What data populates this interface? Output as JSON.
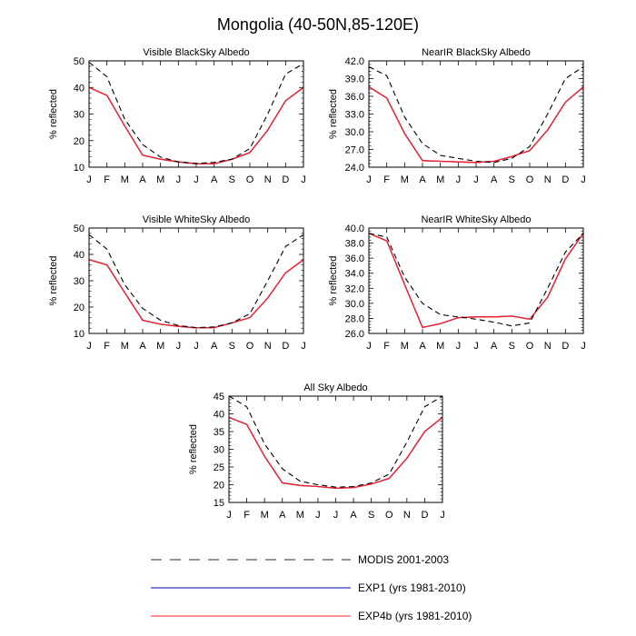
{
  "title": "Mongolia (40-50N,85-120E)",
  "colors": {
    "modis": "#000000",
    "exp1": "#0000b4",
    "exp4b": "#ff2020",
    "frame": "#000000"
  },
  "legend": {
    "entries": [
      {
        "label": "MODIS 2001-2003",
        "style": "dashed",
        "color": "#555555"
      },
      {
        "label": "EXP1 (yrs 1981-2010)",
        "style": "solid",
        "color": "#0000b4"
      },
      {
        "label": "EXP4b (yrs 1981-2010)",
        "style": "solid",
        "color": "#ff2020"
      }
    ]
  },
  "chart_data": [
    {
      "type": "line",
      "title": "Visible BlackSky Albedo",
      "ylabel": "% reflected",
      "xlabel": "",
      "categories": [
        "J",
        "F",
        "M",
        "A",
        "M",
        "J",
        "J",
        "A",
        "S",
        "O",
        "N",
        "D",
        "J"
      ],
      "ylim": [
        10,
        50
      ],
      "yticks": [
        "10",
        "20",
        "30",
        "40",
        "50"
      ],
      "series": [
        {
          "name": "MODIS 2001-2003",
          "values": [
            49.5,
            44,
            28,
            18.5,
            13.8,
            12,
            11.4,
            11.8,
            13,
            17,
            30,
            45,
            49
          ]
        },
        {
          "name": "EXP1 (yrs 1981-2010)",
          "values": [
            40,
            37,
            25.5,
            14.5,
            13,
            12,
            11.3,
            11.3,
            13,
            15.5,
            24,
            35,
            40
          ]
        },
        {
          "name": "EXP4b (yrs 1981-2010)",
          "values": [
            40,
            37,
            25.5,
            14.5,
            13,
            12,
            11.3,
            11.3,
            13,
            15.5,
            24,
            35,
            40
          ]
        }
      ]
    },
    {
      "type": "line",
      "title": "NearIR BlackSky Albedo",
      "ylabel": "% reflected",
      "xlabel": "",
      "categories": [
        "J",
        "F",
        "M",
        "A",
        "M",
        "J",
        "J",
        "A",
        "S",
        "O",
        "N",
        "D",
        "J"
      ],
      "ylim": [
        24,
        42
      ],
      "yticks": [
        "24.0",
        "27.0",
        "30.0",
        "33.0",
        "36.0",
        "39.0",
        "42.0"
      ],
      "series": [
        {
          "name": "MODIS 2001-2003",
          "values": [
            41,
            39.5,
            32.5,
            28,
            26,
            25.5,
            25,
            24.8,
            25.5,
            27.5,
            33,
            39,
            41
          ]
        },
        {
          "name": "EXP1 (yrs 1981-2010)",
          "values": [
            37.6,
            35.7,
            29.7,
            25.1,
            25,
            24.9,
            24.8,
            25,
            25.8,
            26.8,
            30.3,
            35,
            37.6
          ]
        },
        {
          "name": "EXP4b (yrs 1981-2010)",
          "values": [
            37.6,
            35.7,
            29.7,
            25.1,
            25,
            24.9,
            24.8,
            25,
            25.8,
            26.8,
            30.3,
            35,
            37.6
          ]
        }
      ]
    },
    {
      "type": "line",
      "title": "Visible WhiteSky Albedo",
      "ylabel": "% reflected",
      "xlabel": "",
      "categories": [
        "J",
        "F",
        "M",
        "A",
        "M",
        "J",
        "J",
        "A",
        "S",
        "O",
        "N",
        "D",
        "J"
      ],
      "ylim": [
        10,
        50
      ],
      "yticks": [
        "10",
        "20",
        "30",
        "40",
        "50"
      ],
      "series": [
        {
          "name": "MODIS 2001-2003",
          "values": [
            47.5,
            42,
            28.5,
            19.5,
            15,
            13,
            12.2,
            12.5,
            14,
            17.5,
            30,
            43,
            47.5
          ]
        },
        {
          "name": "EXP1 (yrs 1981-2010)",
          "values": [
            38,
            36,
            25.5,
            15,
            13.5,
            12.7,
            12.1,
            12.2,
            14,
            16,
            23.5,
            33,
            38
          ]
        },
        {
          "name": "EXP4b (yrs 1981-2010)",
          "values": [
            38,
            36,
            25.5,
            15,
            13.5,
            12.7,
            12.1,
            12.2,
            14,
            16,
            23.5,
            33,
            38
          ]
        }
      ]
    },
    {
      "type": "line",
      "title": "NearIR WhiteSky Albedo",
      "ylabel": "% reflected",
      "xlabel": "",
      "categories": [
        "J",
        "F",
        "M",
        "A",
        "M",
        "J",
        "J",
        "A",
        "S",
        "O",
        "N",
        "D",
        "J"
      ],
      "ylim": [
        26,
        40
      ],
      "yticks": [
        "26.0",
        "28.0",
        "30.0",
        "32.0",
        "34.0",
        "36.0",
        "38.0",
        "40.0"
      ],
      "series": [
        {
          "name": "MODIS 2001-2003",
          "values": [
            39.3,
            38.8,
            33.5,
            30,
            28.5,
            28.2,
            27.9,
            27.5,
            27,
            27.4,
            32,
            36.8,
            39.3
          ]
        },
        {
          "name": "EXP1 (yrs 1981-2010)",
          "values": [
            39.3,
            38.3,
            32.5,
            26.8,
            27.3,
            28.1,
            28.2,
            28.2,
            28.3,
            27.9,
            30.8,
            35.9,
            39.3
          ]
        },
        {
          "name": "EXP4b (yrs 1981-2010)",
          "values": [
            39.3,
            38.3,
            32.5,
            26.8,
            27.3,
            28.1,
            28.2,
            28.2,
            28.3,
            27.9,
            30.8,
            35.9,
            39.3
          ]
        }
      ]
    },
    {
      "type": "line",
      "title": "All Sky Albedo",
      "ylabel": "% reflected",
      "xlabel": "",
      "categories": [
        "J",
        "F",
        "M",
        "A",
        "M",
        "J",
        "J",
        "A",
        "S",
        "O",
        "N",
        "D",
        "J"
      ],
      "ylim": [
        15,
        45
      ],
      "yticks": [
        "15",
        "20",
        "25",
        "30",
        "35",
        "40",
        "45"
      ],
      "series": [
        {
          "name": "MODIS 2001-2003",
          "values": [
            45,
            42,
            31.5,
            24.5,
            21,
            20,
            19.3,
            19.5,
            20.5,
            23,
            32,
            42,
            45
          ]
        },
        {
          "name": "EXP1 (yrs 1981-2010)",
          "values": [
            39,
            37,
            28,
            20.5,
            19.8,
            19.5,
            19,
            19.2,
            20.2,
            21.8,
            27.5,
            35,
            39
          ]
        },
        {
          "name": "EXP4b (yrs 1981-2010)",
          "values": [
            39,
            37,
            28,
            20.5,
            19.8,
            19.5,
            19,
            19.2,
            20.2,
            21.8,
            27.5,
            35,
            39
          ]
        }
      ]
    }
  ]
}
